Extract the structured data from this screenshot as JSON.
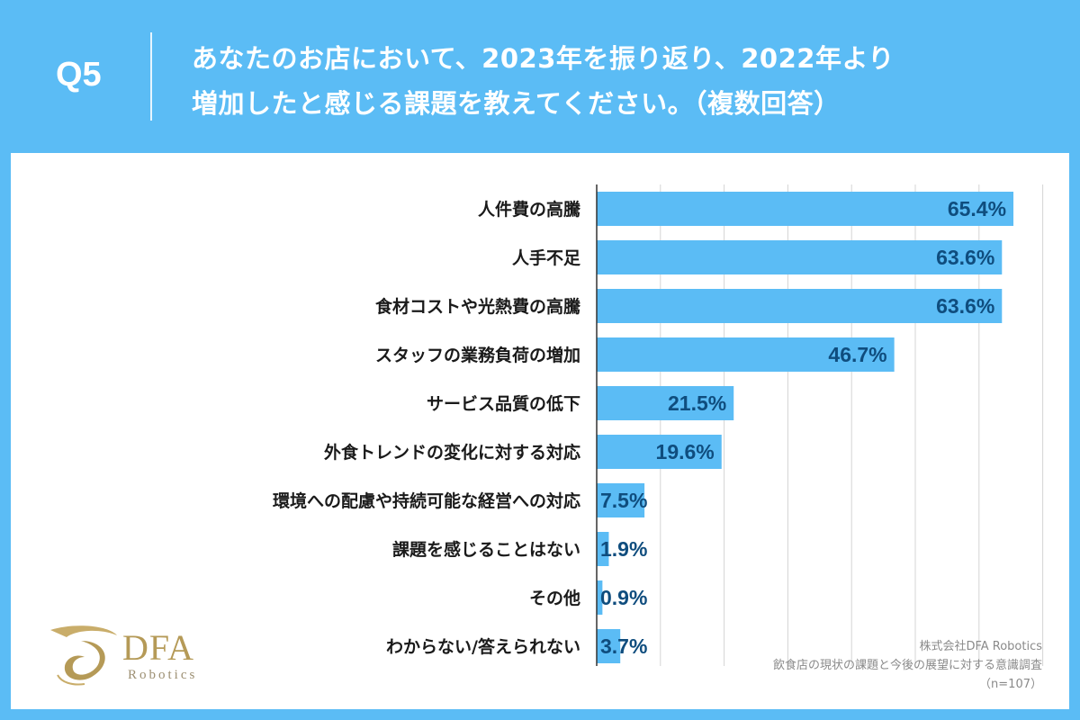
{
  "header": {
    "q_label": "Q5",
    "question_line1": "あなたのお店において、2023年を振り返り、2022年より",
    "question_line2": "増加したと感じる課題を教えてください。（複数回答）"
  },
  "chart_data": {
    "type": "bar",
    "orientation": "horizontal",
    "categories": [
      "人件費の高騰",
      "人手不足",
      "食材コストや光熱費の高騰",
      "スタッフの業務負荷の増加",
      "サービス品質の低下",
      "外食トレンドの変化に対する対応",
      "環境への配慮や持続可能な経営への対応",
      "課題を感じることはない",
      "その他",
      "わからない/答えられない"
    ],
    "values": [
      65.4,
      63.6,
      63.6,
      46.7,
      21.5,
      19.6,
      7.5,
      1.9,
      0.9,
      3.7
    ],
    "value_labels": [
      "65.4%",
      "63.6%",
      "63.6%",
      "46.7%",
      "21.5%",
      "19.6%",
      "7.5%",
      "1.9%",
      "0.9%",
      "3.7%"
    ],
    "xlim": [
      0,
      70
    ],
    "grid": true,
    "bar_color": "#5bbcf5"
  },
  "logo": {
    "name": "DFA",
    "subtitle": "Robotics"
  },
  "source": {
    "company": "株式会社DFA Robotics",
    "survey": "飲食店の現状の課題と今後の展望に対する意識調査",
    "sample": "（n=107）"
  }
}
